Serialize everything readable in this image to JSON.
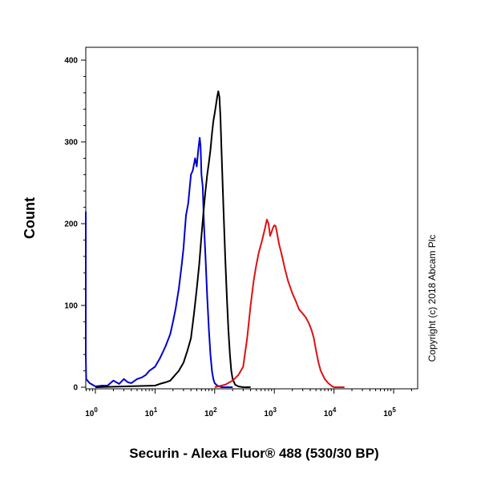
{
  "chart_data": {
    "type": "line",
    "title": "",
    "xlabel": "Securin - Alexa Fluor® 488 (530/30 BP)",
    "ylabel": "Count",
    "x_scale": "log",
    "xlim": [
      0.6,
      250000
    ],
    "ylim": [
      0,
      410
    ],
    "grid": false,
    "legend": "none",
    "x_ticks": [
      {
        "value": 1,
        "base": "10",
        "exp": "0"
      },
      {
        "value": 10,
        "base": "10",
        "exp": "1"
      },
      {
        "value": 100,
        "base": "10",
        "exp": "2"
      },
      {
        "value": 1000,
        "base": "10",
        "exp": "3"
      },
      {
        "value": 10000,
        "base": "10",
        "exp": "4"
      },
      {
        "value": 100000,
        "base": "10",
        "exp": "5"
      }
    ],
    "y_ticks": [
      {
        "value": 0,
        "label": "0"
      },
      {
        "value": 100,
        "label": "100"
      },
      {
        "value": 200,
        "label": "200"
      },
      {
        "value": 300,
        "label": "300"
      },
      {
        "value": 400,
        "label": "400"
      }
    ],
    "series": [
      {
        "color": "#0000cc",
        "x": [
          0.6,
          0.62,
          0.65,
          0.7,
          0.8,
          1,
          1.3,
          1.6,
          2,
          2.5,
          3,
          3.5,
          4,
          5,
          6,
          7,
          8,
          10,
          12,
          15,
          18,
          20,
          22,
          25,
          28,
          30,
          33,
          36,
          40,
          43,
          47,
          50,
          53,
          56,
          58,
          60,
          63,
          66,
          70,
          75,
          80,
          85,
          90,
          95,
          100,
          110,
          120,
          130,
          150,
          180,
          200
        ],
        "y": [
          215,
          120,
          40,
          10,
          5,
          1,
          2,
          2,
          8,
          4,
          10,
          6,
          5,
          10,
          12,
          15,
          20,
          25,
          35,
          50,
          65,
          80,
          95,
          120,
          150,
          170,
          210,
          225,
          260,
          265,
          280,
          270,
          290,
          305,
          295,
          260,
          245,
          200,
          160,
          110,
          70,
          40,
          20,
          10,
          5,
          2,
          1,
          0,
          0,
          0,
          0
        ]
      },
      {
        "color": "#000000",
        "x": [
          1,
          10,
          12,
          15,
          18,
          20,
          25,
          30,
          35,
          40,
          45,
          50,
          55,
          60,
          65,
          70,
          75,
          80,
          85,
          90,
          95,
          100,
          105,
          110,
          115,
          120,
          125,
          130,
          140,
          150,
          160,
          170,
          180,
          190,
          200,
          220,
          250,
          300,
          400
        ],
        "y": [
          0,
          2,
          4,
          6,
          8,
          12,
          20,
          30,
          45,
          60,
          90,
          120,
          150,
          185,
          215,
          240,
          260,
          275,
          290,
          310,
          325,
          335,
          345,
          355,
          362,
          355,
          330,
          290,
          220,
          160,
          110,
          70,
          40,
          20,
          10,
          3,
          1,
          0,
          0
        ]
      },
      {
        "color": "#dd1111",
        "x": [
          100,
          150,
          200,
          250,
          300,
          350,
          400,
          450,
          500,
          550,
          600,
          650,
          700,
          750,
          800,
          850,
          900,
          950,
          1000,
          1050,
          1100,
          1200,
          1300,
          1400,
          1500,
          1700,
          2000,
          2300,
          2600,
          3000,
          3400,
          3800,
          4200,
          4600,
          5000,
          5500,
          6000,
          7000,
          8000,
          9000,
          10000,
          12000,
          15000
        ],
        "y": [
          0,
          3,
          8,
          15,
          25,
          60,
          100,
          130,
          150,
          165,
          175,
          185,
          195,
          205,
          200,
          185,
          190,
          195,
          198,
          197,
          190,
          175,
          165,
          155,
          145,
          130,
          115,
          105,
          95,
          90,
          85,
          78,
          70,
          60,
          45,
          30,
          20,
          10,
          5,
          2,
          0,
          0,
          0
        ]
      }
    ],
    "annotations": [
      "Copyright (c) 2018 Abcam Plc"
    ]
  }
}
